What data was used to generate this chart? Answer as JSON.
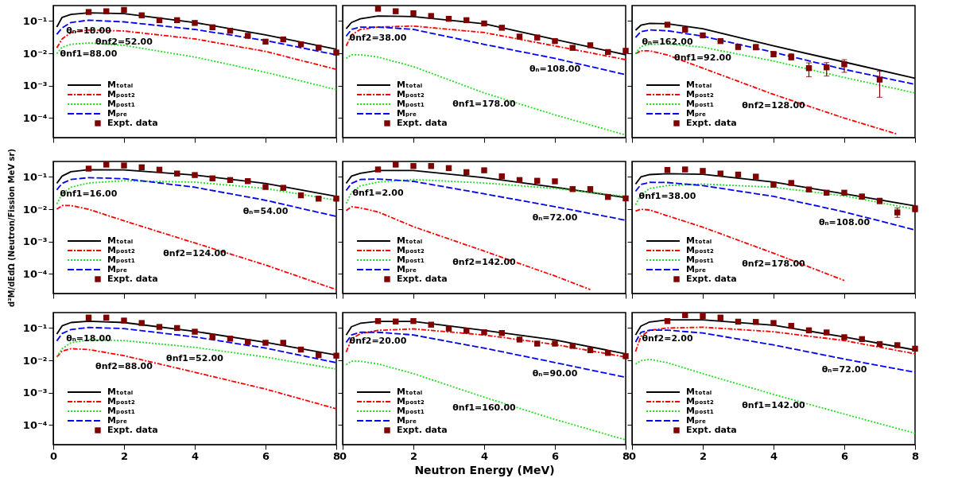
{
  "chart_data": [
    {
      "type": "line",
      "log": "y",
      "xlim": [
        0,
        8
      ],
      "ylim": [
        2.5e-05,
        0.3
      ],
      "xticks": [
        0,
        2,
        4,
        6,
        8
      ],
      "yticks": [
        {
          "value": 0.0001,
          "label": "10⁻⁴"
        },
        {
          "value": 0.001,
          "label": "10⁻³"
        },
        {
          "value": 0.01,
          "label": "10⁻²"
        },
        {
          "value": 0.1,
          "label": "10⁻¹"
        }
      ],
      "tick_labels": "y",
      "legend": "bottom left",
      "x": [
        0.1,
        0.25,
        0.5,
        1,
        2,
        4,
        6,
        8
      ],
      "series": [
        {
          "name": "Mₜₒₜₐₗ",
          "type": "line",
          "color": "#000000",
          "line_style": "solid",
          "values": [
            0.065,
            0.13,
            0.16,
            0.18,
            0.17,
            0.09,
            0.037,
            0.0134
          ]
        },
        {
          "name": "Mₚₒₛₜ₂",
          "type": "line",
          "color": "#ff0000",
          "line_style": "dashdot",
          "values": [
            0.0148,
            0.028,
            0.044,
            0.053,
            0.049,
            0.028,
            0.0115,
            0.0032
          ]
        },
        {
          "name": "Mₚₒₛₜ₁",
          "type": "line",
          "color": "#22dd22",
          "line_style": "dotted",
          "values": [
            0.0098,
            0.0155,
            0.019,
            0.021,
            0.0177,
            0.0077,
            0.0026,
            0.00076
          ]
        },
        {
          "name": "Mₚᵣₑ",
          "type": "line",
          "color": "#0000ff",
          "line_style": "dashed",
          "values": [
            0.039,
            0.061,
            0.09,
            0.106,
            0.094,
            0.055,
            0.025,
            0.009
          ]
        },
        {
          "name": "Expt. data",
          "type": "scatter",
          "marker": "square",
          "color": "#800000",
          "x": [
            1,
            1.5,
            2,
            2.5,
            3,
            3.5,
            4,
            4.5,
            5,
            5.5,
            6,
            6.5,
            7,
            7.5,
            8
          ],
          "values": [
            0.19,
            0.2,
            0.22,
            0.15,
            0.106,
            0.106,
            0.087,
            0.064,
            0.05,
            0.035,
            0.023,
            0.027,
            0.019,
            0.015,
            0.0106
          ]
        }
      ],
      "annotations": [
        {
          "text": "θₙ=18.00",
          "x": 1,
          "y": 0.106
        },
        {
          "text": "θnf2=52.00",
          "x": 2,
          "y": 0.049
        },
        {
          "text": "θnf1=88.00",
          "x": 1,
          "y": 0.021
        }
      ]
    },
    {
      "type": "line",
      "log": "y",
      "xlim": [
        0,
        8
      ],
      "ylim": [
        2.5e-05,
        0.3
      ],
      "xticks": [
        0,
        2,
        4,
        6,
        8
      ],
      "yticks": [
        {
          "value": 0.0001,
          "label": null
        },
        {
          "value": 0.001,
          "label": null
        },
        {
          "value": 0.01,
          "label": null
        },
        {
          "value": 0.1,
          "label": null
        }
      ],
      "tick_labels": false,
      "legend": "bottom left",
      "x": [
        0.1,
        0.25,
        0.5,
        1,
        2,
        4,
        6,
        8
      ],
      "series": [
        {
          "name": "Mₜₒₜₐₗ",
          "type": "line",
          "color": "#000000",
          "line_style": "solid",
          "values": [
            0.058,
            0.09,
            0.117,
            0.143,
            0.137,
            0.082,
            0.027,
            0.0091
          ]
        },
        {
          "name": "Mₚₒₛₜ₂",
          "type": "line",
          "color": "#ff0000",
          "line_style": "dashdot",
          "values": [
            0.017,
            0.037,
            0.055,
            0.065,
            0.07,
            0.044,
            0.017,
            0.0064
          ]
        },
        {
          "name": "Mₚₒₛₜ₁",
          "type": "line",
          "color": "#22dd22",
          "line_style": "dotted",
          "values": [
            0.007,
            0.009,
            0.0091,
            0.0077,
            0.0039,
            0.0006,
            0.000126,
            3e-05
          ]
        },
        {
          "name": "Mₚᵣₑ",
          "type": "line",
          "color": "#0000ff",
          "line_style": "dashed",
          "values": [
            0.034,
            0.055,
            0.065,
            0.065,
            0.055,
            0.019,
            0.007,
            0.0022
          ]
        },
        {
          "name": "Expt. data",
          "type": "scatter",
          "marker": "square",
          "color": "#800000",
          "x": [
            1,
            1.5,
            2,
            2.5,
            3,
            3.5,
            4,
            4.5,
            5,
            5.5,
            6,
            6.5,
            7,
            7.5,
            8
          ],
          "values": [
            0.24,
            0.2,
            0.174,
            0.143,
            0.117,
            0.106,
            0.084,
            0.062,
            0.033,
            0.031,
            0.024,
            0.0148,
            0.0178,
            0.011,
            0.012
          ]
        }
      ],
      "annotations": [
        {
          "text": "θnf2=38.00",
          "x": 1,
          "y": 0.065
        },
        {
          "text": "θₙ=108.00",
          "x": 6,
          "y": 0.007
        },
        {
          "text": "θnf1=178.00",
          "x": 4,
          "y": 0.0006
        }
      ]
    },
    {
      "type": "line",
      "log": "y",
      "xlim": [
        0,
        8
      ],
      "ylim": [
        2.5e-05,
        0.3
      ],
      "xticks": [
        0,
        2,
        4,
        6,
        8
      ],
      "yticks": [
        {
          "value": 0.0001,
          "label": null
        },
        {
          "value": 0.001,
          "label": null
        },
        {
          "value": 0.01,
          "label": null
        },
        {
          "value": 0.1,
          "label": null
        }
      ],
      "tick_labels": false,
      "legend": "bottom left",
      "x": [
        0.1,
        0.25,
        0.5,
        1,
        2,
        4,
        6,
        8
      ],
      "series": [
        {
          "name": "Mₜₒₜₐₗ",
          "type": "line",
          "color": "#000000",
          "line_style": "solid",
          "values": [
            0.052,
            0.074,
            0.085,
            0.082,
            0.058,
            0.017,
            0.0054,
            0.0017
          ]
        },
        {
          "name": "Mₚₒₛₜ₂",
          "type": "line",
          "color": "#ff0000",
          "line_style": "dashdot",
          "x": [
            0.1,
            0.25,
            0.5,
            1,
            2,
            4,
            6,
            7.5
          ],
          "values": [
            0.0098,
            0.012,
            0.012,
            0.0089,
            0.0035,
            0.00054,
            0.0001,
            3.2e-05
          ]
        },
        {
          "name": "Mₚₒₛₜ₁",
          "type": "line",
          "color": "#22dd22",
          "line_style": "dotted",
          "values": [
            0.0098,
            0.0163,
            0.0188,
            0.0195,
            0.0155,
            0.0058,
            0.0018,
            0.0006
          ]
        },
        {
          "name": "Mₚᵣₑ",
          "type": "line",
          "color": "#0000ff",
          "line_style": "dashed",
          "values": [
            0.031,
            0.047,
            0.053,
            0.05,
            0.034,
            0.0108,
            0.0032,
            0.0011
          ]
        },
        {
          "name": "Expt. data",
          "type": "scatter",
          "marker": "square",
          "color": "#800000",
          "x": [
            1,
            1.5,
            2,
            2.5,
            3,
            3.5,
            4,
            4.5,
            5,
            5.5,
            6,
            7
          ],
          "values": [
            0.077,
            0.054,
            0.036,
            0.024,
            0.016,
            0.0154,
            0.0094,
            0.0077,
            0.0035,
            0.0037,
            0.0046,
            0.00155
          ],
          "errors": [
            null,
            null,
            null,
            null,
            [
              0.013,
              0.019
            ],
            [
              0.013,
              0.019
            ],
            [
              0.0078,
              0.0115
            ],
            [
              0.0062,
              0.0098
            ],
            [
              0.0019,
              0.0051
            ],
            [
              0.002,
              0.0052
            ],
            [
              0.0026,
              0.0064
            ],
            [
              0.00044,
              0.0028
            ]
          ]
        }
      ],
      "annotations": [
        {
          "text": "θₙ=162.00",
          "x": 1,
          "y": 0.05
        },
        {
          "text": "θnf1=92.00",
          "x": 2,
          "y": 0.0155
        },
        {
          "text": "θnf2=128.00",
          "x": 4,
          "y": 0.00054
        }
      ]
    },
    {
      "type": "line",
      "log": "y",
      "xlim": [
        0,
        8
      ],
      "ylim": [
        2.5e-05,
        0.3
      ],
      "xticks": [
        0,
        2,
        4,
        6,
        8
      ],
      "yticks": [
        {
          "value": 0.0001,
          "label": "10⁻⁴"
        },
        {
          "value": 0.001,
          "label": "10⁻³"
        },
        {
          "value": 0.01,
          "label": "10⁻²"
        },
        {
          "value": 0.1,
          "label": "10⁻¹"
        }
      ],
      "tick_labels": "y",
      "legend": "bottom left",
      "ylabel": "d²M/dEdΩ (Neutron/Fission MeV sr)",
      "x": [
        0.1,
        0.25,
        0.5,
        1,
        2,
        4,
        6,
        8
      ],
      "series": [
        {
          "name": "Mₜₒₜₐₗ",
          "type": "line",
          "color": "#000000",
          "line_style": "solid",
          "values": [
            0.063,
            0.106,
            0.145,
            0.167,
            0.164,
            0.114,
            0.063,
            0.025
          ]
        },
        {
          "name": "Mₚₒₛₜ₂",
          "type": "line",
          "color": "#ff0000",
          "line_style": "dashdot",
          "values": [
            0.01,
            0.013,
            0.013,
            0.01,
            0.0044,
            0.00091,
            0.00019,
            3.3e-05
          ]
        },
        {
          "name": "Mₚₒₛₜ₁",
          "type": "line",
          "color": "#22dd22",
          "line_style": "dotted",
          "values": [
            0.0145,
            0.03,
            0.048,
            0.065,
            0.076,
            0.069,
            0.044,
            0.019
          ]
        },
        {
          "name": "Mₚᵣₑ",
          "type": "line",
          "color": "#0000ff",
          "line_style": "dashed",
          "values": [
            0.04,
            0.063,
            0.083,
            0.095,
            0.088,
            0.048,
            0.019,
            0.006
          ]
        },
        {
          "name": "Expt. data",
          "type": "scatter",
          "marker": "square",
          "color": "#800000",
          "x": [
            1,
            1.5,
            2,
            2.5,
            3,
            3.5,
            4,
            4.5,
            5,
            5.5,
            6,
            6.5,
            7,
            7.5,
            8
          ],
          "values": [
            0.18,
            0.24,
            0.225,
            0.198,
            0.167,
            0.127,
            0.114,
            0.09,
            0.08,
            0.074,
            0.049,
            0.046,
            0.027,
            0.0213,
            0.0213
          ]
        }
      ],
      "annotations": [
        {
          "text": "θnf1=16.00",
          "x": 1,
          "y": 0.065
        },
        {
          "text": "θₙ=54.00",
          "x": 6,
          "y": 0.019
        },
        {
          "text": "θnf2=124.00",
          "x": 4,
          "y": 0.00091
        }
      ]
    },
    {
      "type": "line",
      "log": "y",
      "xlim": [
        0,
        8
      ],
      "ylim": [
        2.5e-05,
        0.3
      ],
      "xticks": [
        0,
        2,
        4,
        6,
        8
      ],
      "yticks": [
        {
          "value": 0.0001,
          "label": null
        },
        {
          "value": 0.001,
          "label": null
        },
        {
          "value": 0.01,
          "label": null
        },
        {
          "value": 0.1,
          "label": null
        }
      ],
      "tick_labels": false,
      "legend": "bottom left",
      "x": [
        0.1,
        0.25,
        0.5,
        1,
        2,
        4,
        6,
        8
      ],
      "series": [
        {
          "name": "Mₜₒₜₐₗ",
          "type": "line",
          "color": "#000000",
          "line_style": "solid",
          "values": [
            0.063,
            0.106,
            0.13,
            0.158,
            0.158,
            0.095,
            0.048,
            0.023
          ]
        },
        {
          "name": "Mₚₒₛₜ₂",
          "type": "line",
          "color": "#ff0000",
          "line_style": "dashdot",
          "x": [
            0.1,
            0.25,
            0.5,
            1,
            2,
            4,
            6,
            7
          ],
          "values": [
            0.0091,
            0.012,
            0.011,
            0.0083,
            0.0029,
            0.00051,
            8.7e-05,
            3.3e-05
          ]
        },
        {
          "name": "Mₚₒₛₜ₁",
          "type": "line",
          "color": "#22dd22",
          "line_style": "dotted",
          "values": [
            0.015,
            0.033,
            0.053,
            0.069,
            0.083,
            0.065,
            0.044,
            0.025
          ]
        },
        {
          "name": "Mₚᵣₑ",
          "type": "line",
          "color": "#0000ff",
          "line_style": "dashed",
          "values": [
            0.038,
            0.063,
            0.083,
            0.086,
            0.073,
            0.03,
            0.012,
            0.0046
          ]
        },
        {
          "name": "Expt. data",
          "type": "scatter",
          "marker": "square",
          "color": "#800000",
          "x": [
            1,
            1.5,
            2,
            2.5,
            3,
            3.5,
            4,
            4.5,
            5,
            5.5,
            6,
            6.5,
            7,
            7.5,
            8
          ],
          "values": [
            0.17,
            0.24,
            0.217,
            0.217,
            0.187,
            0.14,
            0.16,
            0.104,
            0.08,
            0.076,
            0.073,
            0.042,
            0.042,
            0.024,
            0.0217
          ]
        }
      ],
      "annotations": [
        {
          "text": "θnf1=2.00",
          "x": 1,
          "y": 0.069
        },
        {
          "text": "θₙ=72.00",
          "x": 6,
          "y": 0.012
        },
        {
          "text": "θnf2=142.00",
          "x": 4,
          "y": 0.00051
        }
      ]
    },
    {
      "type": "line",
      "log": "y",
      "xlim": [
        0,
        8
      ],
      "ylim": [
        2.5e-05,
        0.3
      ],
      "xticks": [
        0,
        2,
        4,
        6,
        8
      ],
      "yticks": [
        {
          "value": 0.0001,
          "label": null
        },
        {
          "value": 0.001,
          "label": null
        },
        {
          "value": 0.01,
          "label": null
        },
        {
          "value": 0.1,
          "label": null
        }
      ],
      "tick_labels": false,
      "legend": "bottom left",
      "x": [
        0.1,
        0.25,
        0.5,
        1,
        2,
        4,
        6,
        8
      ],
      "series": [
        {
          "name": "Mₜₒₜₐₗ",
          "type": "line",
          "color": "#000000",
          "line_style": "solid",
          "values": [
            0.06,
            0.1,
            0.118,
            0.125,
            0.12,
            0.069,
            0.03,
            0.0127
          ]
        },
        {
          "name": "Mₚₒₛₜ₂",
          "type": "line",
          "color": "#ff0000",
          "line_style": "dashdot",
          "x": [
            0.1,
            0.25,
            0.5,
            1,
            2,
            4,
            6
          ],
          "values": [
            0.0088,
            0.01,
            0.0095,
            0.0063,
            0.0028,
            0.00044,
            6.3e-05
          ]
        },
        {
          "name": "Mₚₒₛₜ₁",
          "type": "line",
          "color": "#22dd22",
          "line_style": "dotted",
          "values": [
            0.0137,
            0.0276,
            0.044,
            0.054,
            0.06,
            0.048,
            0.026,
            0.01
          ]
        },
        {
          "name": "Mₚᵣₑ",
          "type": "line",
          "color": "#0000ff",
          "line_style": "dashed",
          "values": [
            0.036,
            0.058,
            0.068,
            0.067,
            0.054,
            0.025,
            0.0083,
            0.0023
          ]
        },
        {
          "name": "Expt. data",
          "type": "scatter",
          "marker": "square",
          "color": "#800000",
          "x": [
            1,
            1.5,
            2,
            2.5,
            3,
            3.5,
            4,
            4.5,
            5,
            5.5,
            6,
            6.5,
            7,
            7.5,
            8
          ],
          "values": [
            0.164,
            0.17,
            0.153,
            0.127,
            0.118,
            0.102,
            0.0575,
            0.065,
            0.041,
            0.0325,
            0.0325,
            0.0247,
            0.018,
            0.008,
            0.0104
          ],
          "errors": [
            null,
            null,
            null,
            null,
            null,
            null,
            null,
            null,
            null,
            null,
            null,
            [
              0.021,
              0.029
            ],
            [
              0.015,
              0.022
            ],
            [
              0.0056,
              0.011
            ],
            [
              0.0083,
              0.013
            ]
          ]
        }
      ],
      "annotations": [
        {
          "text": "θnf1=38.00",
          "x": 1,
          "y": 0.054
        },
        {
          "text": "θₙ=108.00",
          "x": 6,
          "y": 0.0083
        },
        {
          "text": "θnf2=178.00",
          "x": 4,
          "y": 0.00044
        }
      ]
    },
    {
      "type": "line",
      "log": "y",
      "xlim": [
        0,
        8
      ],
      "ylim": [
        2.5e-05,
        0.3
      ],
      "xticks": [
        0,
        2,
        4,
        6,
        8
      ],
      "yticks": [
        {
          "value": 0.0001,
          "label": "10⁻⁴"
        },
        {
          "value": 0.001,
          "label": "10⁻³"
        },
        {
          "value": 0.01,
          "label": "10⁻²"
        },
        {
          "value": 0.1,
          "label": "10⁻¹"
        }
      ],
      "legend": "bottom left",
      "x": [
        0.1,
        0.25,
        0.5,
        1,
        2,
        4,
        6,
        8
      ],
      "series": [
        {
          "name": "Mₜₒₜₐₗ",
          "type": "line",
          "color": "#000000",
          "line_style": "solid",
          "values": [
            0.065,
            0.117,
            0.148,
            0.163,
            0.148,
            0.079,
            0.036,
            0.0146
          ]
        },
        {
          "name": "Mₚₒₛₜ₂",
          "type": "line",
          "color": "#ff0000",
          "line_style": "dashdot",
          "values": [
            0.0127,
            0.0195,
            0.023,
            0.0216,
            0.014,
            0.0043,
            0.0013,
            0.00032
          ]
        },
        {
          "name": "Mₚₒₛₜ₁",
          "type": "line",
          "color": "#22dd22",
          "line_style": "dotted",
          "values": [
            0.0127,
            0.023,
            0.035,
            0.043,
            0.041,
            0.0253,
            0.0127,
            0.0054
          ]
        },
        {
          "name": "Mₚᵣₑ",
          "type": "line",
          "color": "#0000ff",
          "line_style": "dashed",
          "values": [
            0.04,
            0.0675,
            0.09,
            0.104,
            0.096,
            0.053,
            0.024,
            0.0085
          ]
        },
        {
          "name": "Expt. data",
          "type": "scatter",
          "marker": "square",
          "color": "#800000",
          "x": [
            1,
            1.5,
            2,
            2.5,
            3,
            3.5,
            4,
            4.5,
            5,
            5.5,
            6,
            6.5,
            7,
            7.5,
            8
          ],
          "values": [
            0.21,
            0.21,
            0.17,
            0.143,
            0.108,
            0.1,
            0.077,
            0.054,
            0.047,
            0.037,
            0.035,
            0.035,
            0.0216,
            0.0145,
            0.014
          ]
        }
      ],
      "annotations": [
        {
          "text": "θₙ=18.00",
          "x": 1,
          "y": 0.104
        },
        {
          "text": "θnf2=88.00",
          "x": 2,
          "y": 0.014
        },
        {
          "text": "θnf1=52.00",
          "x": 4,
          "y": 0.0253
        }
      ]
    },
    {
      "type": "line",
      "log": "y",
      "xlim": [
        0,
        8
      ],
      "ylim": [
        2.5e-05,
        0.3
      ],
      "xticks": [
        0,
        2,
        4,
        6,
        8
      ],
      "yticks": [
        {
          "value": 0.0001,
          "label": null
        },
        {
          "value": 0.001,
          "label": null
        },
        {
          "value": 0.01,
          "label": null
        },
        {
          "value": 0.1,
          "label": null
        }
      ],
      "tick_labels": "x",
      "legend": "bottom left",
      "xlabel": "Neutron Energy (MeV)",
      "x": [
        0.1,
        0.25,
        0.5,
        1,
        2,
        4,
        6,
        8
      ],
      "series": [
        {
          "name": "Mₜₒₜₐₗ",
          "type": "line",
          "color": "#000000",
          "line_style": "solid",
          "values": [
            0.061,
            0.11,
            0.14,
            0.16,
            0.16,
            0.085,
            0.043,
            0.016
          ]
        },
        {
          "name": "Mₚₒₛₜ₂",
          "type": "line",
          "color": "#ff0000",
          "line_style": "dashdot",
          "values": [
            0.018,
            0.046,
            0.067,
            0.085,
            0.094,
            0.061,
            0.031,
            0.0127
          ]
        },
        {
          "name": "Mₚₒₛₜ₁",
          "type": "line",
          "color": "#22dd22",
          "line_style": "dotted",
          "values": [
            0.0074,
            0.0094,
            0.0094,
            0.0078,
            0.0039,
            0.00073,
            0.00015,
            3.5e-05
          ]
        },
        {
          "name": "Mₚᵣₑ",
          "type": "line",
          "color": "#0000ff",
          "line_style": "dashed",
          "values": [
            0.036,
            0.061,
            0.074,
            0.074,
            0.061,
            0.024,
            0.0086,
            0.003
          ]
        },
        {
          "name": "Expt. data",
          "type": "scatter",
          "marker": "square",
          "color": "#800000",
          "x": [
            1,
            1.5,
            2,
            2.5,
            3,
            3.5,
            4,
            4.5,
            5,
            5.5,
            6,
            6.5,
            7,
            7.5,
            8
          ],
          "values": [
            0.164,
            0.159,
            0.164,
            0.127,
            0.096,
            0.082,
            0.074,
            0.07,
            0.044,
            0.033,
            0.033,
            0.028,
            0.0207,
            0.017,
            0.0135
          ]
        }
      ],
      "annotations": [
        {
          "text": "θnf2=20.00",
          "x": 1,
          "y": 0.085
        },
        {
          "text": "θₙ=90.00",
          "x": 6,
          "y": 0.0086
        },
        {
          "text": "θnf1=160.00",
          "x": 4,
          "y": 0.00073
        }
      ]
    },
    {
      "type": "line",
      "log": "y",
      "xlim": [
        0,
        8
      ],
      "ylim": [
        2.5e-05,
        0.3
      ],
      "xticks": [
        0,
        2,
        4,
        6,
        8
      ],
      "yticks": [
        {
          "value": 0.0001,
          "label": null
        },
        {
          "value": 0.001,
          "label": null
        },
        {
          "value": 0.01,
          "label": null
        },
        {
          "value": 0.1,
          "label": null
        }
      ],
      "tick_labels": "x",
      "legend": "bottom left",
      "x": [
        0.1,
        0.25,
        0.5,
        1,
        2,
        4,
        6,
        8
      ],
      "series": [
        {
          "name": "Mₜₒₜₐₗ",
          "type": "line",
          "color": "#000000",
          "line_style": "solid",
          "values": [
            0.061,
            0.115,
            0.154,
            0.18,
            0.18,
            0.122,
            0.053,
            0.021
          ]
        },
        {
          "name": "Mₚₒₛₜ₂",
          "type": "line",
          "color": "#ff0000",
          "line_style": "dashdot",
          "values": [
            0.0188,
            0.055,
            0.085,
            0.1,
            0.106,
            0.077,
            0.041,
            0.016
          ]
        },
        {
          "name": "Mₚₒₛₜ₁",
          "type": "line",
          "color": "#22dd22",
          "line_style": "dotted",
          "values": [
            0.0077,
            0.0098,
            0.0108,
            0.0085,
            0.0039,
            0.00089,
            0.00022,
            5.6e-05
          ]
        },
        {
          "name": "Mₚᵣₑ",
          "type": "line",
          "color": "#0000ff",
          "line_style": "dashed",
          "values": [
            0.037,
            0.073,
            0.086,
            0.086,
            0.07,
            0.03,
            0.011,
            0.0043
          ]
        },
        {
          "name": "Expt. data",
          "type": "scatter",
          "marker": "square",
          "color": "#800000",
          "x": [
            1,
            1.5,
            2,
            2.5,
            3,
            3.5,
            4,
            4.5,
            5,
            5.5,
            6,
            6.5,
            7,
            7.5,
            8
          ],
          "values": [
            0.164,
            0.25,
            0.233,
            0.21,
            0.157,
            0.154,
            0.143,
            0.117,
            0.085,
            0.073,
            0.052,
            0.0455,
            0.032,
            0.0295,
            0.023
          ]
        }
      ],
      "annotations": [
        {
          "text": "θnf2=2.00",
          "x": 1,
          "y": 0.1
        },
        {
          "text": "θₙ=72.00",
          "x": 6,
          "y": 0.011
        },
        {
          "text": "θnf1=142.00",
          "x": 4,
          "y": 0.00089
        }
      ]
    }
  ]
}
